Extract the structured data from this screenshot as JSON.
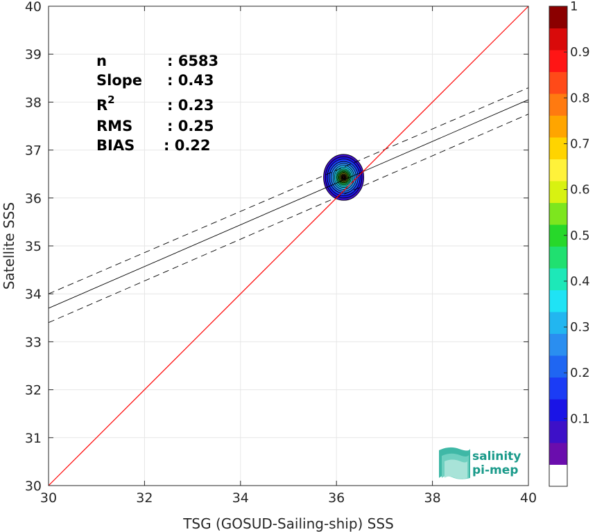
{
  "chart_data": {
    "type": "scatter",
    "subtype": "density-contour",
    "xlabel": "TSG (GOSUD-Sailing-ship) SSS",
    "ylabel": "Satellite SSS",
    "xlim": [
      30,
      40
    ],
    "ylim": [
      30,
      40
    ],
    "xticks": [
      "30",
      "32",
      "34",
      "36",
      "38",
      "40"
    ],
    "yticks": [
      "30",
      "31",
      "32",
      "33",
      "34",
      "35",
      "36",
      "37",
      "38",
      "39",
      "40"
    ],
    "grid": true,
    "stats": [
      {
        "key": "n",
        "value": ": 6583"
      },
      {
        "key": "Slope",
        "value": ": 0.43"
      },
      {
        "key": "R",
        "sup": "2",
        "value": ": 0.23"
      },
      {
        "key": "RMS",
        "value": ": 0.25"
      },
      {
        "key": "BIAS",
        "value": ": 0.22"
      }
    ],
    "identity_line": {
      "x": [
        30,
        40
      ],
      "y": [
        30,
        40
      ],
      "color": "#ff0000"
    },
    "regression_line": {
      "x": [
        30,
        40
      ],
      "y": [
        33.7,
        38.05
      ],
      "color": "#000000"
    },
    "regression_bounds": [
      {
        "x": [
          30,
          40
        ],
        "y": [
          34.0,
          38.3
        ]
      },
      {
        "x": [
          30,
          40
        ],
        "y": [
          33.4,
          37.75
        ]
      }
    ],
    "density_peak": {
      "x": 36.15,
      "y": 36.43
    },
    "density_contours": [
      {
        "level": 0.05,
        "rx": 0.42,
        "ry": 0.48
      },
      {
        "level": 0.1,
        "rx": 0.38,
        "ry": 0.43
      },
      {
        "level": 0.15,
        "rx": 0.34,
        "ry": 0.38
      },
      {
        "level": 0.2,
        "rx": 0.3,
        "ry": 0.33
      },
      {
        "level": 0.25,
        "rx": 0.26,
        "ry": 0.29
      },
      {
        "level": 0.3,
        "rx": 0.22,
        "ry": 0.25
      },
      {
        "level": 0.35,
        "rx": 0.19,
        "ry": 0.21
      },
      {
        "level": 0.4,
        "rx": 0.16,
        "ry": 0.18
      },
      {
        "level": 0.45,
        "rx": 0.14,
        "ry": 0.155
      },
      {
        "level": 0.5,
        "rx": 0.12,
        "ry": 0.13
      },
      {
        "level": 0.55,
        "rx": 0.1,
        "ry": 0.11
      },
      {
        "level": 0.6,
        "rx": 0.085,
        "ry": 0.093
      },
      {
        "level": 0.65,
        "rx": 0.07,
        "ry": 0.077
      },
      {
        "level": 0.7,
        "rx": 0.058,
        "ry": 0.064
      },
      {
        "level": 0.75,
        "rx": 0.047,
        "ry": 0.052
      },
      {
        "level": 0.8,
        "rx": 0.037,
        "ry": 0.041
      },
      {
        "level": 0.85,
        "rx": 0.028,
        "ry": 0.031
      },
      {
        "level": 0.9,
        "rx": 0.02,
        "ry": 0.022
      },
      {
        "level": 0.95,
        "rx": 0.012,
        "ry": 0.013
      }
    ],
    "colorbar": {
      "range": [
        0,
        1
      ],
      "ticks": [
        "0.1",
        "0.2",
        "0.3",
        "0.4",
        "0.5",
        "0.6",
        "0.7",
        "0.8",
        "0.9",
        "1"
      ],
      "colors": [
        "#ffffff",
        "#6a0dad",
        "#3d10c8",
        "#1a14e6",
        "#1b3cf5",
        "#1f66f2",
        "#2a8ef0",
        "#22b6f0",
        "#1fe3f5",
        "#1de8b8",
        "#20e070",
        "#27d82a",
        "#7de61e",
        "#d8f211",
        "#fff23a",
        "#ffd400",
        "#ffa500",
        "#ff7a10",
        "#ff4a18",
        "#ff1515",
        "#d90a0a",
        "#8b0000"
      ]
    }
  },
  "logo": {
    "line1": "salinity",
    "line2": "pi-mep"
  }
}
